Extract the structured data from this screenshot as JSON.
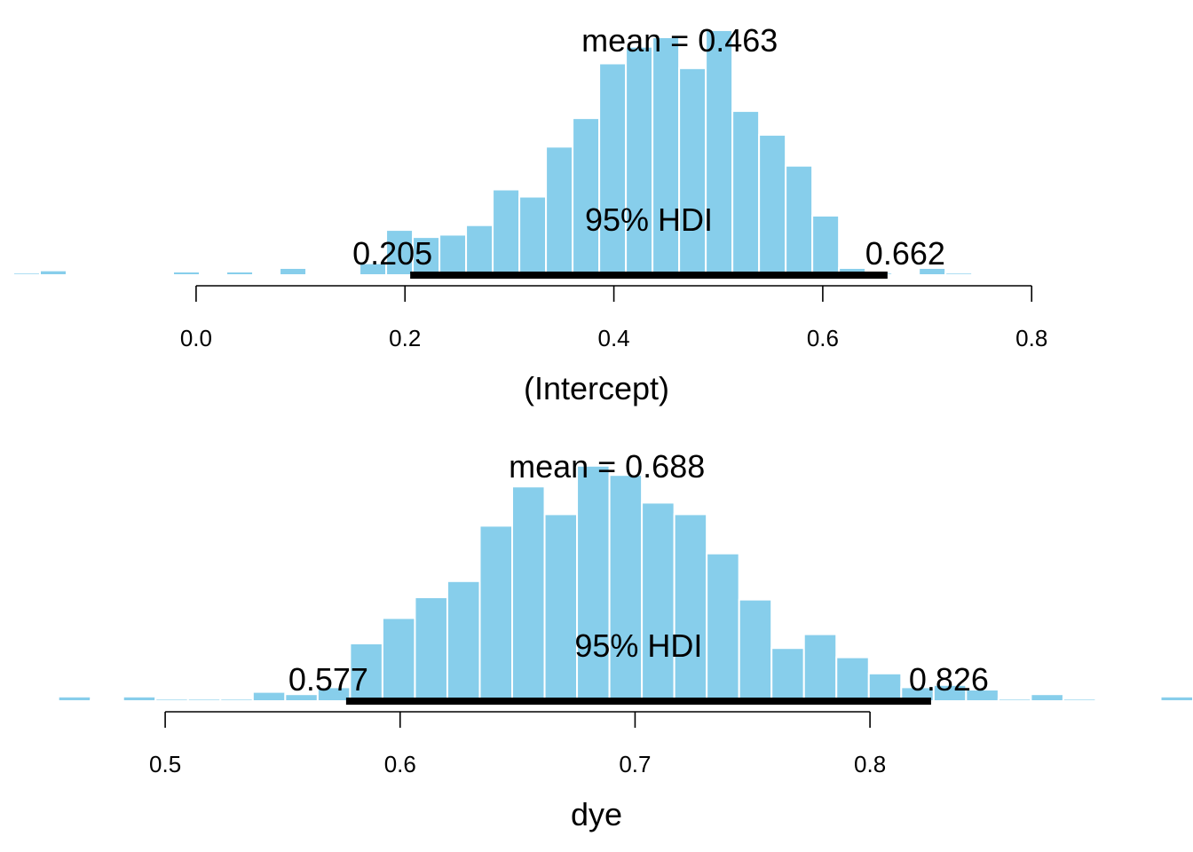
{
  "chart_data": [
    {
      "type": "histogram",
      "xlabel": "(Intercept)",
      "mean_label": "mean = 0.463",
      "hdi_label": "95% HDI",
      "hdi": [
        0.205,
        0.662
      ],
      "hdi_low_label": "0.205",
      "hdi_high_label": "0.662",
      "xlim": [
        -0.175,
        0.81
      ],
      "ylim": [
        0,
        1
      ],
      "ticks": [
        0.0,
        0.2,
        0.4,
        0.6,
        0.8
      ],
      "tick_labels": [
        "0.0",
        "0.2",
        "0.4",
        "0.6",
        "0.8"
      ],
      "bin_start": -0.175,
      "bin_width": 0.0255,
      "heights": [
        0.01,
        0.02,
        0.0,
        0.005,
        0.005,
        0.005,
        0.015,
        0.005,
        0.015,
        0.0,
        0.03,
        0.005,
        0.005,
        0.05,
        0.19,
        0.16,
        0.17,
        0.21,
        0.36,
        0.33,
        0.54,
        0.66,
        0.89,
        0.96,
        1.0,
        0.87,
        1.03,
        0.69,
        0.59,
        0.46,
        0.25,
        0.03,
        0.01,
        0.0,
        0.03,
        0.01
      ]
    },
    {
      "type": "histogram",
      "xlabel": "dye",
      "mean_label": "mean = 0.688",
      "hdi_label": "95% HDI",
      "hdi": [
        0.577,
        0.826
      ],
      "hdi_low_label": "0.577",
      "hdi_high_label": "0.826",
      "xlim": [
        0.455,
        0.905
      ],
      "ylim": [
        0,
        1
      ],
      "ticks": [
        0.5,
        0.6,
        0.7,
        0.8
      ],
      "tick_labels": [
        "0.5",
        "0.6",
        "0.7",
        "0.8"
      ],
      "bin_start": 0.4545,
      "bin_width": 0.0138,
      "heights": [
        0.02,
        0.005,
        0.02,
        0.01,
        0.01,
        0.01,
        0.04,
        0.03,
        0.06,
        0.25,
        0.36,
        0.45,
        0.52,
        0.76,
        0.93,
        0.81,
        1.02,
        0.98,
        0.86,
        0.81,
        0.64,
        0.44,
        0.23,
        0.29,
        0.19,
        0.12,
        0.06,
        0.07,
        0.05,
        0.01,
        0.03,
        0.01,
        0.005,
        0.0,
        0.02
      ]
    }
  ]
}
